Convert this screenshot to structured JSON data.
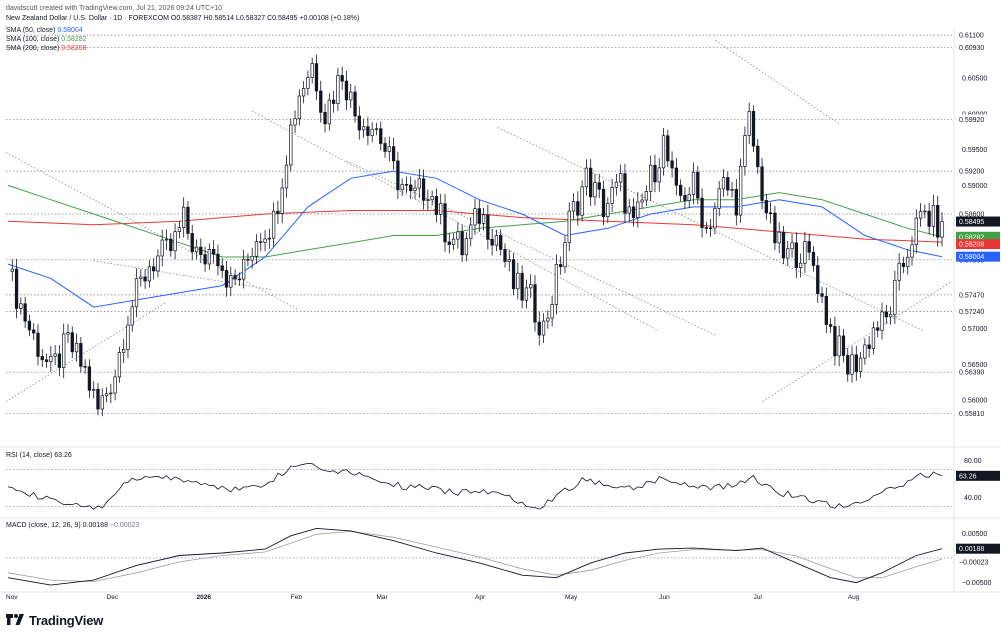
{
  "header": {
    "title": "davidscutt created with TradingView.com, Jul 21, 2026 09:24 UTC+10",
    "symbol_line": "New Zealand Dollar / U.S. Dollar · 1D · FOREXCOM  O0.58387  H0.58514  L0.58327  C0.58495  +0.00108 (+0.18%)",
    "sma50_label": "SMA (50, close)",
    "sma50_value": "0.58004",
    "sma100_label": "SMA (100, close)",
    "sma100_value": "0.58282",
    "sma200_label": "SMA (200, close)",
    "sma200_value": "0.58208",
    "rsi_label": "RSI (14, close)",
    "rsi_value": "63.26",
    "macd_label": "MACD (close, 12, 26, 9)",
    "macd_value": "0.00188",
    "macd_signal_value": "−0.00023"
  },
  "brand": {
    "name": "TradingView"
  },
  "colors": {
    "up": "#131722",
    "down": "#131722",
    "sma50": "#2962ff",
    "sma100": "#43a047",
    "sma200": "#e53935",
    "grid_level": "#787b86",
    "rsi_line": "#131722",
    "macd_line": "#131722",
    "signal_line": "#9e9e9e",
    "axis_text": "#131722"
  },
  "chart_data": [
    {
      "type": "candlestick",
      "title": "New Zealand Dollar / U.S. Dollar · 1D · FOREXCOM",
      "ylim": [
        0.554,
        0.612
      ],
      "x_labels": [
        "Nov",
        "Dec",
        "2026",
        "Feb",
        "Mar",
        "Apr",
        "May",
        "Jun",
        "Jul",
        "Aug"
      ],
      "ticks": [
        "0.60500",
        "0.60000",
        "0.59500",
        "0.59000",
        "0.58500",
        "0.58000",
        "0.57500",
        "0.57000",
        "0.56500",
        "0.56000"
      ],
      "levels": [
        0.611,
        0.6093,
        0.5992,
        0.592,
        0.586,
        0.5796,
        0.5747,
        0.5724,
        0.5639,
        0.5581
      ],
      "level_labels": [
        "0.61100",
        "0.60930",
        "0.59920",
        "0.59200",
        "0.58600",
        "0.57960",
        "0.57470",
        "0.57240",
        "0.56390",
        "0.55810"
      ],
      "close_path": [
        [
          0,
          0.578
        ],
        [
          5,
          0.57
        ],
        [
          10,
          0.564
        ],
        [
          14,
          0.568
        ],
        [
          18,
          0.564
        ],
        [
          21,
          0.5585
        ],
        [
          25,
          0.564
        ],
        [
          28,
          0.572
        ],
        [
          33,
          0.579
        ],
        [
          38,
          0.581
        ],
        [
          41,
          0.585
        ],
        [
          45,
          0.579
        ],
        [
          48,
          0.582
        ],
        [
          52,
          0.576
        ],
        [
          55,
          0.578
        ],
        [
          58,
          0.583
        ],
        [
          62,
          0.585
        ],
        [
          66,
          0.598
        ],
        [
          68,
          0.603
        ],
        [
          71,
          0.607
        ],
        [
          74,
          0.6
        ],
        [
          78,
          0.606
        ],
        [
          81,
          0.6
        ],
        [
          86,
          0.598
        ],
        [
          90,
          0.592
        ],
        [
          94,
          0.588
        ],
        [
          98,
          0.59
        ],
        [
          102,
          0.584
        ],
        [
          106,
          0.581
        ],
        [
          110,
          0.586
        ],
        [
          114,
          0.583
        ],
        [
          118,
          0.576
        ],
        [
          122,
          0.574
        ],
        [
          125,
          0.57
        ],
        [
          128,
          0.577
        ],
        [
          131,
          0.585
        ],
        [
          135,
          0.591
        ],
        [
          139,
          0.587
        ],
        [
          143,
          0.59
        ],
        [
          146,
          0.584
        ],
        [
          150,
          0.591
        ],
        [
          153,
          0.596
        ],
        [
          156,
          0.588
        ],
        [
          160,
          0.59
        ],
        [
          163,
          0.584
        ],
        [
          167,
          0.59
        ],
        [
          170,
          0.588
        ],
        [
          173,
          0.599
        ],
        [
          175,
          0.592
        ],
        [
          178,
          0.584
        ],
        [
          181,
          0.58
        ],
        [
          185,
          0.581
        ],
        [
          188,
          0.579
        ],
        [
          190,
          0.574
        ],
        [
          193,
          0.568
        ],
        [
          196,
          0.5645
        ],
        [
          199,
          0.566
        ],
        [
          202,
          0.57
        ],
        [
          205,
          0.571
        ],
        [
          208,
          0.577
        ],
        [
          211,
          0.583
        ],
        [
          214,
          0.586
        ],
        [
          217,
          0.5845
        ],
        [
          218,
          0.58495
        ]
      ],
      "sma50": [
        [
          0,
          0.579
        ],
        [
          10,
          0.577
        ],
        [
          20,
          0.573
        ],
        [
          30,
          0.574
        ],
        [
          40,
          0.575
        ],
        [
          50,
          0.576
        ],
        [
          60,
          0.58
        ],
        [
          70,
          0.587
        ],
        [
          80,
          0.591
        ],
        [
          90,
          0.592
        ],
        [
          100,
          0.591
        ],
        [
          110,
          0.588
        ],
        [
          120,
          0.586
        ],
        [
          130,
          0.583
        ],
        [
          140,
          0.584
        ],
        [
          150,
          0.586
        ],
        [
          160,
          0.587
        ],
        [
          170,
          0.587
        ],
        [
          180,
          0.588
        ],
        [
          190,
          0.587
        ],
        [
          200,
          0.583
        ],
        [
          210,
          0.581
        ],
        [
          218,
          0.58004
        ]
      ],
      "sma100": [
        [
          0,
          0.59
        ],
        [
          10,
          0.588
        ],
        [
          20,
          0.586
        ],
        [
          30,
          0.584
        ],
        [
          40,
          0.582
        ],
        [
          50,
          0.58
        ],
        [
          60,
          0.58
        ],
        [
          70,
          0.581
        ],
        [
          80,
          0.582
        ],
        [
          90,
          0.583
        ],
        [
          100,
          0.583
        ],
        [
          110,
          0.584
        ],
        [
          120,
          0.5845
        ],
        [
          130,
          0.585
        ],
        [
          140,
          0.586
        ],
        [
          150,
          0.587
        ],
        [
          160,
          0.588
        ],
        [
          170,
          0.588
        ],
        [
          180,
          0.589
        ],
        [
          190,
          0.588
        ],
        [
          200,
          0.586
        ],
        [
          210,
          0.584
        ],
        [
          218,
          0.58282
        ]
      ],
      "sma200": [
        [
          0,
          0.585
        ],
        [
          20,
          0.5845
        ],
        [
          40,
          0.585
        ],
        [
          60,
          0.586
        ],
        [
          80,
          0.5865
        ],
        [
          100,
          0.5865
        ],
        [
          120,
          0.5855
        ],
        [
          140,
          0.585
        ],
        [
          160,
          0.5845
        ],
        [
          180,
          0.5835
        ],
        [
          200,
          0.5825
        ],
        [
          218,
          0.58208
        ]
      ]
    },
    {
      "type": "line",
      "title": "RSI (14, close)",
      "ylim": [
        20,
        90
      ],
      "ticks": [
        "80.00",
        "40.00"
      ],
      "levels": [
        70,
        30
      ],
      "last_value": 63.26,
      "series": [
        {
          "name": "RSI (14, close)",
          "values": [
            [
              0,
              55
            ],
            [
              6,
              42
            ],
            [
              12,
              35
            ],
            [
              18,
              28
            ],
            [
              22,
              30
            ],
            [
              26,
              50
            ],
            [
              30,
              60
            ],
            [
              36,
              62
            ],
            [
              42,
              58
            ],
            [
              48,
              52
            ],
            [
              54,
              48
            ],
            [
              60,
              55
            ],
            [
              66,
              72
            ],
            [
              70,
              78
            ],
            [
              74,
              70
            ],
            [
              80,
              68
            ],
            [
              86,
              60
            ],
            [
              92,
              52
            ],
            [
              98,
              50
            ],
            [
              104,
              45
            ],
            [
              110,
              48
            ],
            [
              116,
              42
            ],
            [
              120,
              35
            ],
            [
              124,
              30
            ],
            [
              128,
              42
            ],
            [
              134,
              58
            ],
            [
              140,
              55
            ],
            [
              146,
              50
            ],
            [
              152,
              60
            ],
            [
              158,
              55
            ],
            [
              164,
              50
            ],
            [
              170,
              54
            ],
            [
              174,
              62
            ],
            [
              180,
              45
            ],
            [
              186,
              40
            ],
            [
              192,
              32
            ],
            [
              196,
              30
            ],
            [
              200,
              38
            ],
            [
              206,
              48
            ],
            [
              212,
              62
            ],
            [
              216,
              65
            ],
            [
              218,
              63.26
            ]
          ]
        }
      ]
    },
    {
      "type": "line",
      "title": "MACD (close, 12, 26, 9)",
      "ylim": [
        -0.0065,
        0.0075
      ],
      "ticks": [
        "0.00500",
        "−0.00500"
      ],
      "last_macd": 0.00188,
      "last_signal": -0.00023,
      "series": [
        {
          "name": "MACD",
          "values": [
            [
              0,
              -0.004
            ],
            [
              10,
              -0.0055
            ],
            [
              20,
              -0.0045
            ],
            [
              30,
              -0.0015
            ],
            [
              40,
              0.0005
            ],
            [
              50,
              0.001
            ],
            [
              60,
              0.0018
            ],
            [
              66,
              0.0045
            ],
            [
              72,
              0.006
            ],
            [
              80,
              0.0055
            ],
            [
              90,
              0.0035
            ],
            [
              100,
              0.001
            ],
            [
              110,
              -0.001
            ],
            [
              120,
              -0.0035
            ],
            [
              128,
              -0.004
            ],
            [
              136,
              -0.001
            ],
            [
              144,
              0.001
            ],
            [
              152,
              0.0018
            ],
            [
              160,
              0.002
            ],
            [
              170,
              0.0015
            ],
            [
              176,
              0.002
            ],
            [
              184,
              -0.001
            ],
            [
              192,
              -0.004
            ],
            [
              198,
              -0.005
            ],
            [
              204,
              -0.003
            ],
            [
              212,
              0.0005
            ],
            [
              218,
              0.00188
            ]
          ]
        },
        {
          "name": "Signal",
          "values": [
            [
              0,
              -0.003
            ],
            [
              10,
              -0.0045
            ],
            [
              20,
              -0.0048
            ],
            [
              30,
              -0.003
            ],
            [
              40,
              -0.0008
            ],
            [
              50,
              0.0005
            ],
            [
              60,
              0.0012
            ],
            [
              66,
              0.003
            ],
            [
              72,
              0.0048
            ],
            [
              80,
              0.0054
            ],
            [
              90,
              0.0042
            ],
            [
              100,
              0.0022
            ],
            [
              110,
              0.0002
            ],
            [
              120,
              -0.0022
            ],
            [
              128,
              -0.0035
            ],
            [
              136,
              -0.0025
            ],
            [
              144,
              -0.0005
            ],
            [
              152,
              0.001
            ],
            [
              160,
              0.0017
            ],
            [
              170,
              0.0016
            ],
            [
              176,
              0.0017
            ],
            [
              184,
              0.0004
            ],
            [
              192,
              -0.0022
            ],
            [
              198,
              -0.004
            ],
            [
              204,
              -0.004
            ],
            [
              212,
              -0.0018
            ],
            [
              218,
              -0.00023
            ]
          ]
        }
      ]
    }
  ]
}
